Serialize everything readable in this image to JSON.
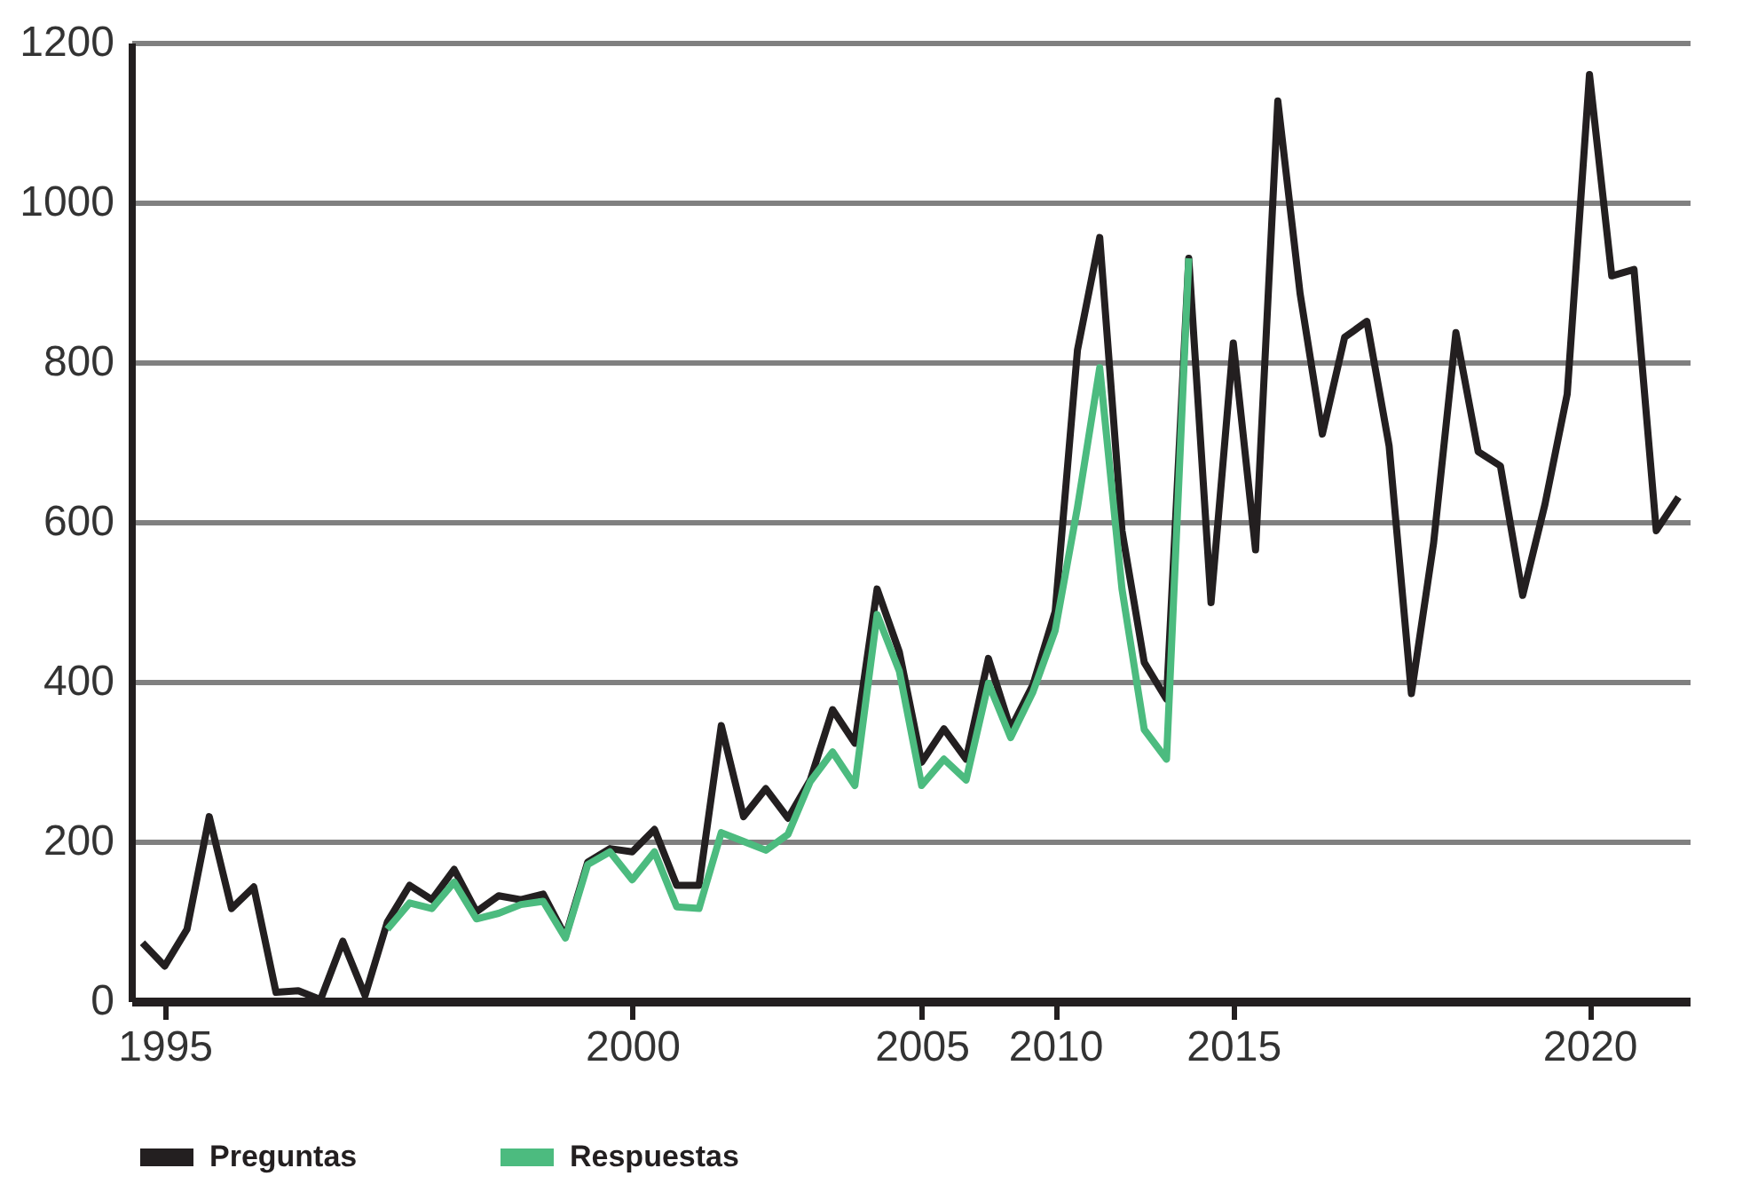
{
  "chart_data": {
    "type": "line",
    "categories": [
      null,
      "1995",
      null,
      null,
      null,
      null,
      null,
      null,
      null,
      null,
      null,
      null,
      null,
      null,
      null,
      null,
      null,
      null,
      null,
      null,
      null,
      null,
      "2000",
      null,
      null,
      null,
      null,
      null,
      null,
      null,
      null,
      null,
      null,
      null,
      null,
      "2005",
      null,
      null,
      null,
      null,
      null,
      "2010",
      null,
      null,
      null,
      null,
      null,
      null,
      null,
      "2015",
      null,
      null,
      null,
      null,
      null,
      null,
      null,
      null,
      null,
      null,
      null,
      null,
      null,
      null,
      null,
      "2020",
      null,
      null,
      null,
      null
    ],
    "series": [
      {
        "name": "Preguntas",
        "color": "#231f20",
        "values": [
          73,
          44,
          90,
          231,
          116,
          143,
          11,
          13,
          2,
          75,
          7,
          99,
          145,
          127,
          165,
          112,
          132,
          127,
          134,
          81,
          174,
          191,
          187,
          215,
          145,
          145,
          345,
          231,
          266,
          229,
          277,
          365,
          323,
          516,
          437,
          299,
          341,
          303,
          429,
          341,
          396,
          488,
          815,
          956,
          589,
          424,
          378,
          930,
          499,
          824,
          565,
          1127,
          886,
          710,
          831,
          851,
          695,
          385,
          574,
          837,
          688,
          670,
          508,
          622,
          760,
          1160,
          908,
          916,
          589,
          631
        ]
      },
      {
        "name": "Respuestas",
        "color": "#4cbb7f",
        "values": [
          null,
          null,
          null,
          null,
          null,
          null,
          null,
          null,
          null,
          null,
          null,
          90,
          123,
          116,
          149,
          103,
          110,
          121,
          125,
          79,
          171,
          187,
          152,
          187,
          118,
          116,
          211,
          200,
          189,
          209,
          275,
          312,
          270,
          484,
          413,
          270,
          303,
          277,
          398,
          330,
          387,
          464,
          618,
          793,
          516,
          340,
          303,
          930,
          null,
          null,
          null,
          null,
          null,
          null,
          null,
          null,
          null,
          null,
          null,
          null,
          null,
          null,
          null,
          null,
          null,
          null,
          null,
          null,
          null,
          null
        ]
      }
    ],
    "ylim": [
      0,
      1200
    ],
    "yticks": [
      0,
      200,
      400,
      600,
      800,
      1000,
      1200
    ],
    "grid": "y",
    "legend": "bottom",
    "line_style": "solid"
  }
}
